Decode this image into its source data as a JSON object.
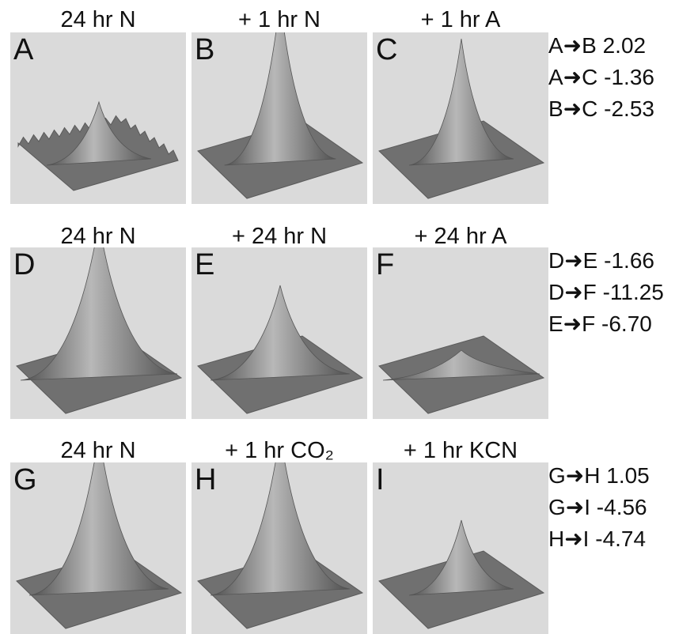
{
  "rows": [
    {
      "panels": [
        {
          "title": "24 hr N",
          "letter": "A"
        },
        {
          "title": "+ 1 hr N",
          "letter": "B"
        },
        {
          "title": "+ 1 hr A",
          "letter": "C"
        }
      ],
      "comparisons": [
        "A➜B 2.02",
        "A➜C -1.36",
        "B➜C -2.53"
      ]
    },
    {
      "panels": [
        {
          "title": "24 hr N",
          "letter": "D"
        },
        {
          "title": "+ 24 hr N",
          "letter": "E"
        },
        {
          "title": "+ 24 hr A",
          "letter": "F"
        }
      ],
      "comparisons": [
        "D➜E -1.66",
        "D➜F -11.25",
        "E➜F -6.70"
      ]
    },
    {
      "panels": [
        {
          "title": "24 hr N",
          "letter": "G"
        },
        {
          "title": "+ 1 hr CO₂",
          "letter": "H"
        },
        {
          "title": "+ 1 hr KCN",
          "letter": "I"
        }
      ],
      "comparisons": [
        "G➜H 1.05",
        "G➜I -4.56",
        "H➜I -4.74"
      ]
    }
  ]
}
